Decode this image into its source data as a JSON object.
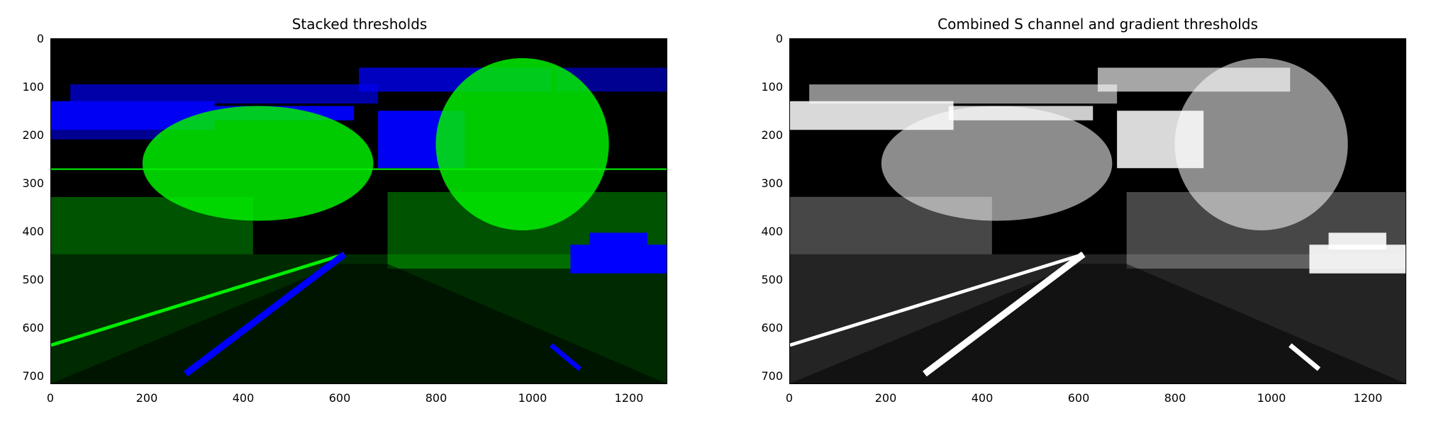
{
  "panels": [
    {
      "title": "Stacked thresholds",
      "xticks": [
        "0",
        "200",
        "400",
        "600",
        "800",
        "1000",
        "1200"
      ],
      "yticks": [
        "0",
        "100",
        "200",
        "300",
        "400",
        "500",
        "600",
        "700"
      ],
      "colors": {
        "background": "#000000",
        "gradient": "#00ff00",
        "s_channel": "#0000ff"
      }
    },
    {
      "title": "Combined S channel and gradient thresholds",
      "xticks": [
        "0",
        "200",
        "400",
        "600",
        "800",
        "1000",
        "1200"
      ],
      "yticks": [
        "0",
        "100",
        "200",
        "300",
        "400",
        "500",
        "600",
        "700"
      ],
      "colors": {
        "background": "#000000",
        "combined": "#ffffff"
      }
    }
  ]
}
